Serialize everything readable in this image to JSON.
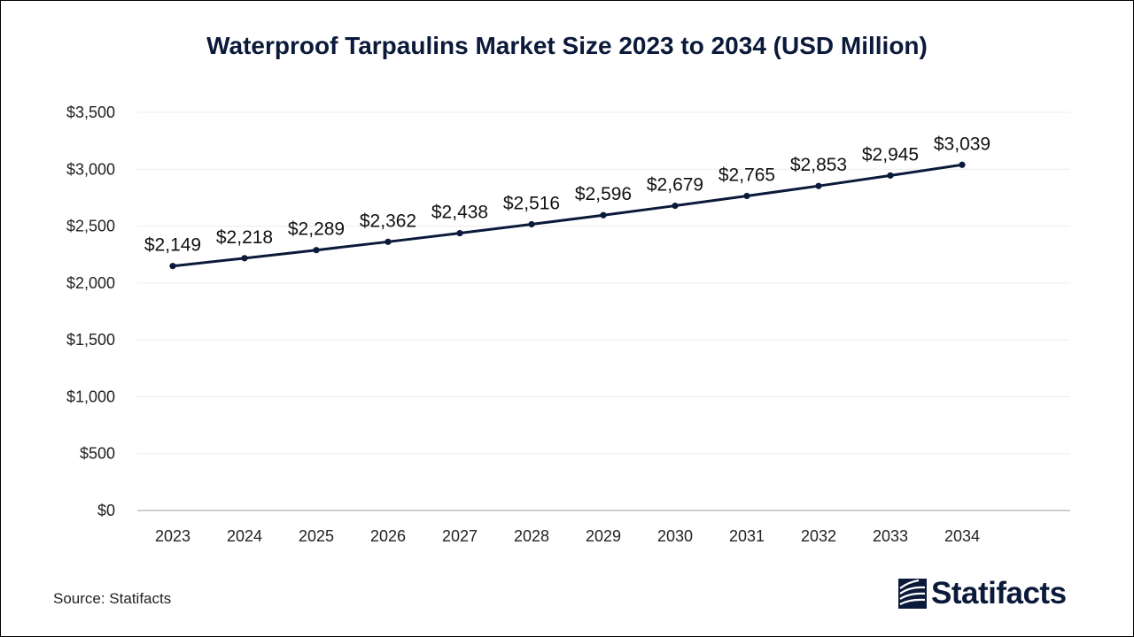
{
  "chart_data": {
    "type": "line",
    "title": "Waterproof Tarpaulins Market Size 2023 to 2034 (USD Million)",
    "xlabel": "",
    "ylabel": "",
    "categories": [
      "2023",
      "2024",
      "2025",
      "2026",
      "2027",
      "2028",
      "2029",
      "2030",
      "2031",
      "2032",
      "2033",
      "2034"
    ],
    "values": [
      2149,
      2218,
      2289,
      2362,
      2438,
      2516,
      2596,
      2679,
      2765,
      2853,
      2945,
      3039
    ],
    "data_labels": [
      "$2,149",
      "$2,218",
      "$2,289",
      "$2,362",
      "$2,438",
      "$2,516",
      "$2,596",
      "$2,679",
      "$2,765",
      "$2,853",
      "$2,945",
      "$3,039"
    ],
    "ylim": [
      0,
      3500
    ],
    "yticks": [
      0,
      500,
      1000,
      1500,
      2000,
      2500,
      3000,
      3500
    ],
    "ytick_labels": [
      "$0",
      "$500",
      "$1,000",
      "$1,500",
      "$2,000",
      "$2,500",
      "$3,000",
      "$3,500"
    ],
    "grid": true,
    "line_color": "#0b1a3a"
  },
  "footer": {
    "source": "Source: Statifacts",
    "brand": "Statifacts",
    "brand_color": "#0b1a3a"
  }
}
